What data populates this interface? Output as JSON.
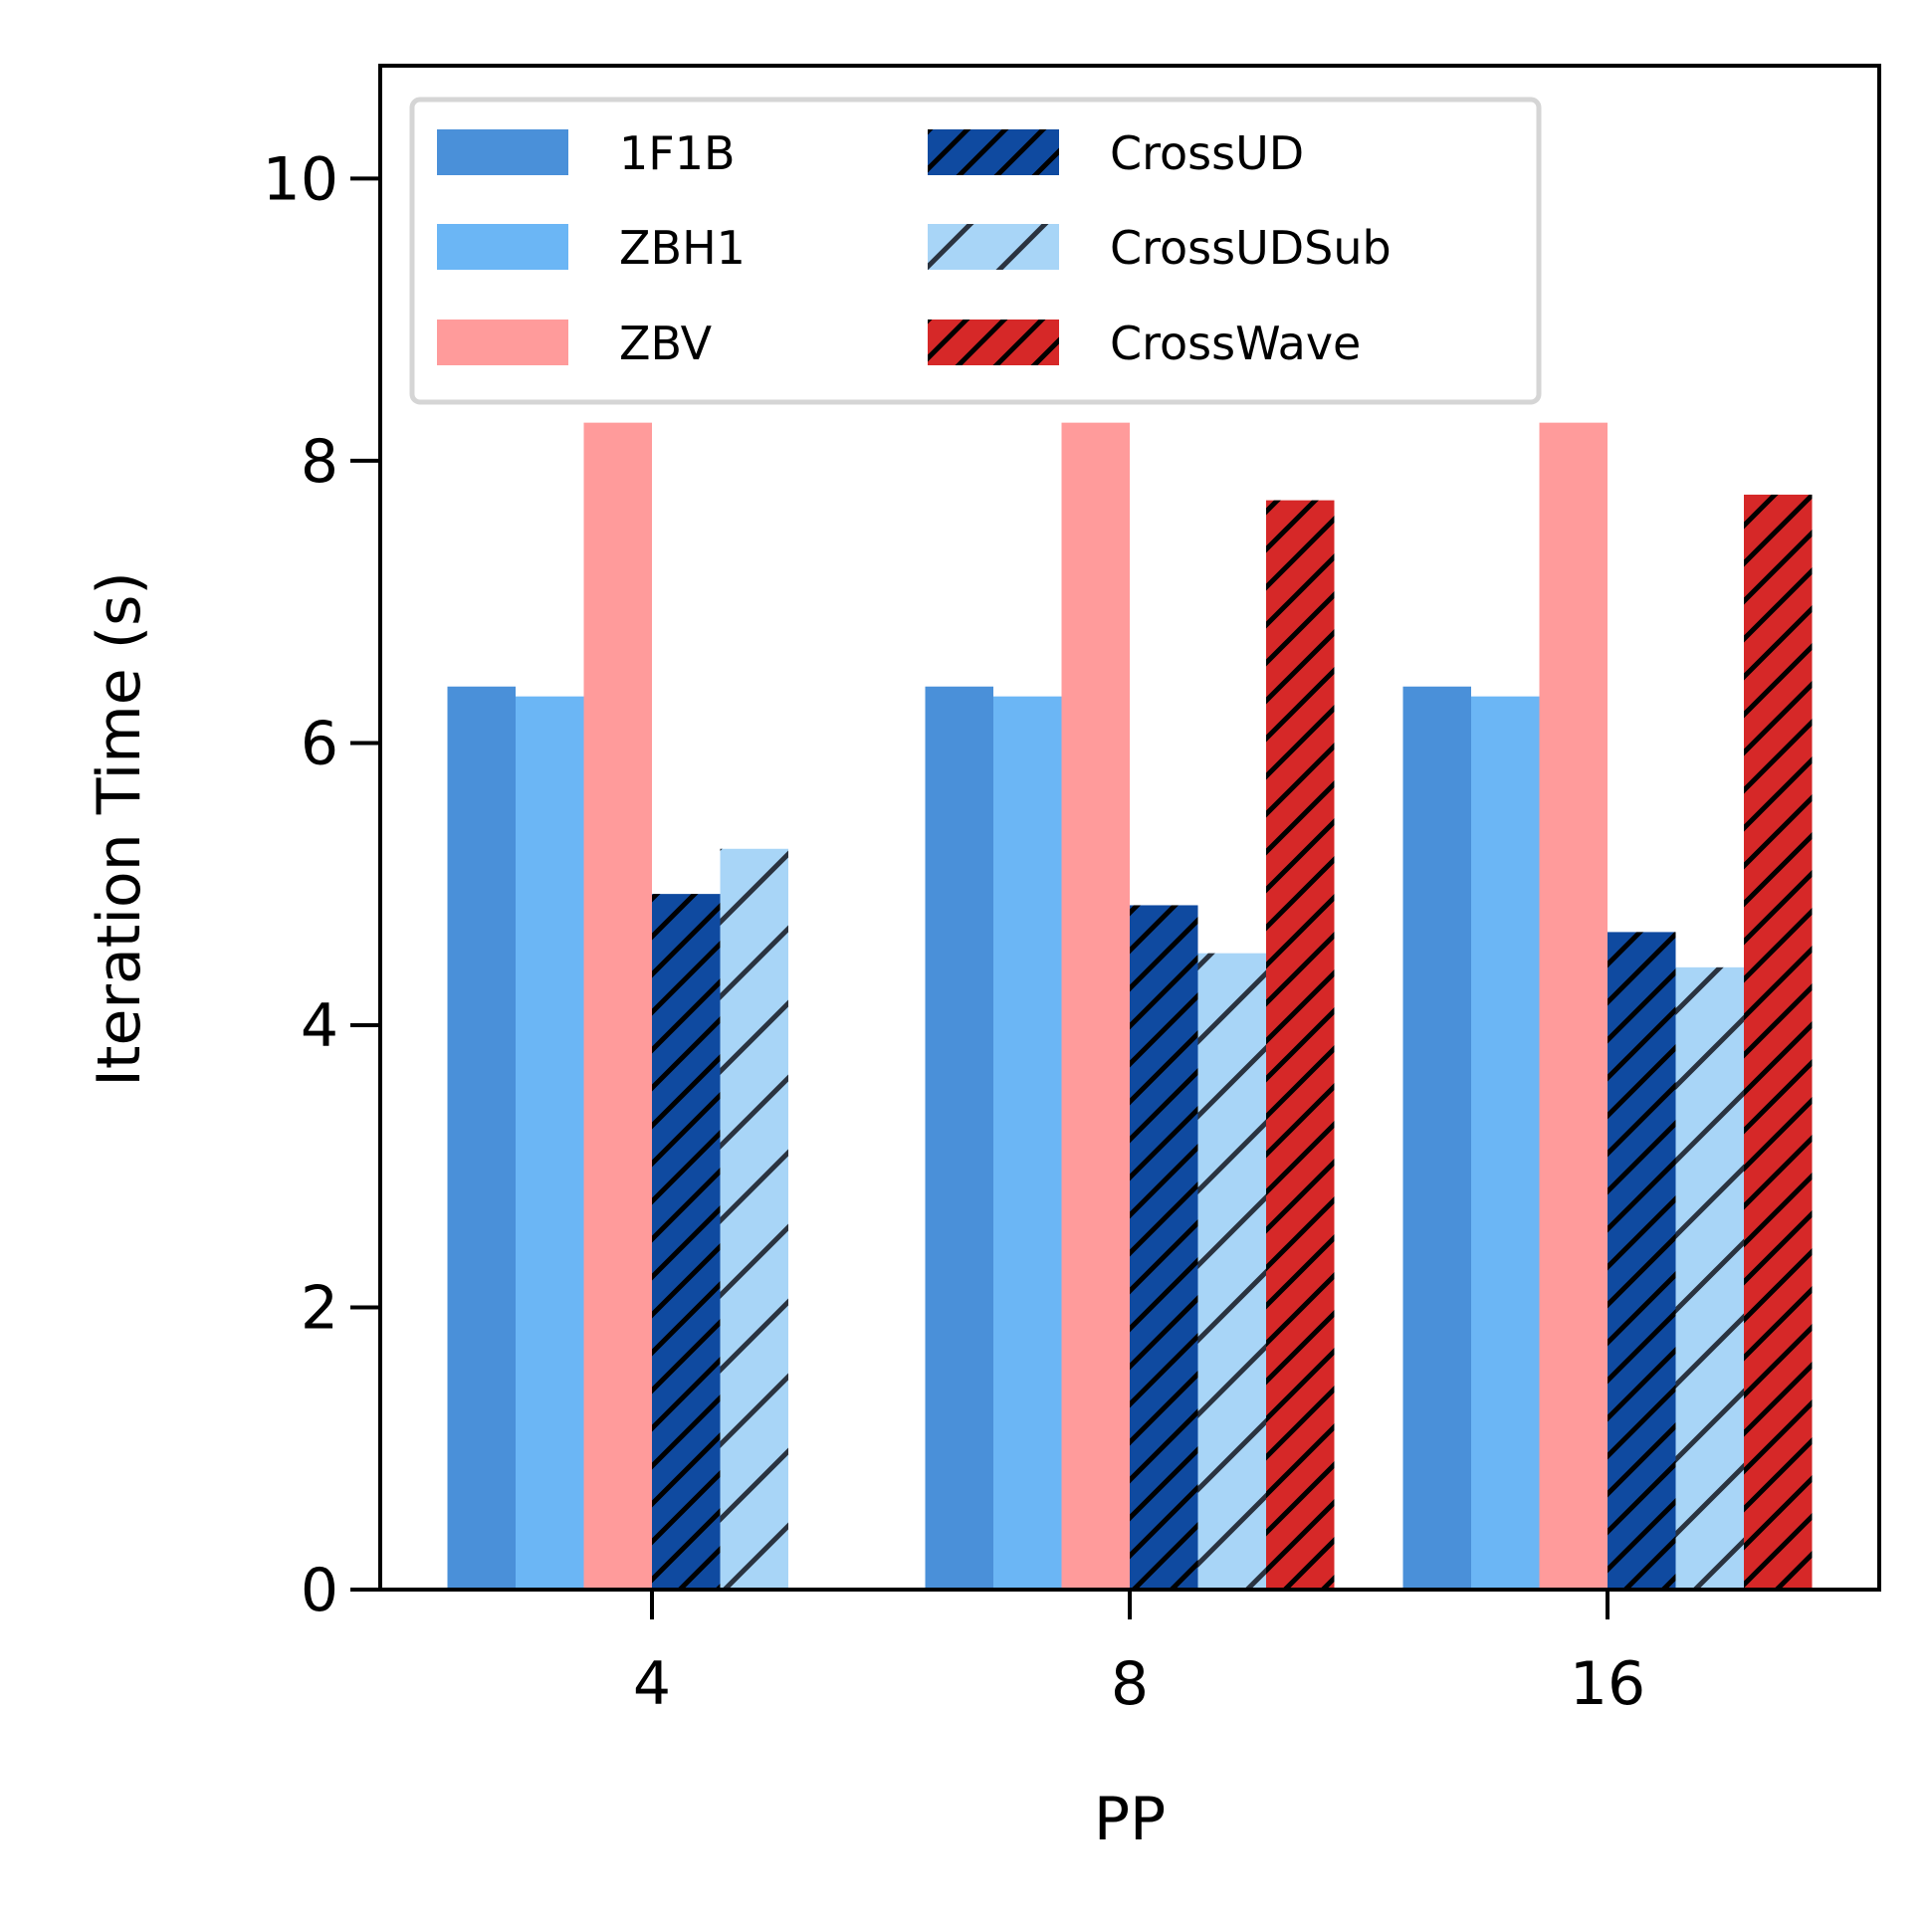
{
  "chart_data": {
    "type": "bar",
    "title": "",
    "xlabel": "PP",
    "ylabel": "Iteration Time (s)",
    "categories": [
      "4",
      "8",
      "16"
    ],
    "ylim": [
      0,
      10.8
    ],
    "yticks": [
      "0",
      "2",
      "4",
      "6",
      "8",
      "10"
    ],
    "ytick_values": [
      0,
      2,
      4,
      6,
      8,
      10
    ],
    "legend_position": "top-left",
    "legend_columns": 2,
    "series": [
      {
        "name": "1F1B",
        "values": [
          6.4,
          6.4,
          6.4
        ],
        "color": "#4a90d9",
        "hatch": false
      },
      {
        "name": "ZBH1",
        "values": [
          6.33,
          6.33,
          6.33
        ],
        "color": "#6bb6f5",
        "hatch": false
      },
      {
        "name": "ZBV",
        "values": [
          8.27,
          8.27,
          8.27
        ],
        "color": "#ff9b9b",
        "hatch": false
      },
      {
        "name": "CrossUD",
        "values": [
          4.93,
          4.85,
          4.66
        ],
        "color": "#0f4aa0",
        "hatch": true,
        "hatch_color": "#000000"
      },
      {
        "name": "CrossUDSub",
        "values": [
          5.25,
          4.51,
          4.41
        ],
        "color": "#a8d5f7",
        "hatch": true,
        "hatch_color": "#2a3340"
      },
      {
        "name": "CrossWave",
        "values": [
          null,
          7.72,
          7.76
        ],
        "color": "#d62828",
        "hatch": true,
        "hatch_color": "#000000"
      }
    ]
  }
}
